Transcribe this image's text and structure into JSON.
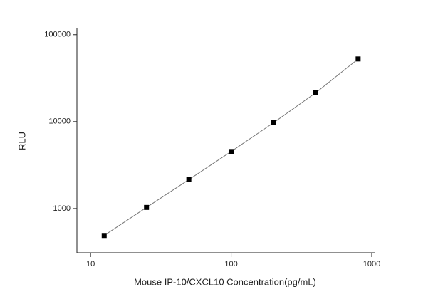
{
  "chart_data": {
    "type": "scatter",
    "x_label": "Mouse IP-10/CXCL10 Concentration(pg/mL)",
    "y_label": "RLU",
    "x": [
      12.5,
      25,
      50,
      100,
      200,
      400,
      800
    ],
    "series": [
      {
        "color": "#000000",
        "line_color": "#777777",
        "values": [
          490,
          1030,
          2150,
          4530,
          9700,
          21500,
          52600
        ]
      }
    ],
    "xlim": [
      8,
      1060
    ],
    "ylim": [
      310,
      118000
    ],
    "xticks": [
      10,
      100,
      1000
    ],
    "yticks": [
      1000,
      10000,
      100000
    ],
    "log_x": true,
    "log_y": true,
    "grid": false
  }
}
